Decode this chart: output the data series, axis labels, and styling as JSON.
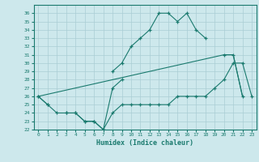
{
  "xlabel": "Humidex (Indice chaleur)",
  "x_values": [
    0,
    1,
    2,
    3,
    4,
    5,
    6,
    7,
    8,
    9,
    10,
    11,
    12,
    13,
    14,
    15,
    16,
    17,
    18,
    19,
    20,
    21,
    22,
    23
  ],
  "line_upper": [
    26,
    25,
    null,
    null,
    null,
    null,
    null,
    null,
    29,
    30,
    32,
    33,
    34,
    36,
    36,
    35,
    36,
    34,
    33,
    null,
    null,
    null,
    null,
    null
  ],
  "line_mid": [
    26,
    null,
    null,
    null,
    null,
    null,
    null,
    null,
    null,
    null,
    null,
    null,
    null,
    null,
    null,
    null,
    null,
    null,
    null,
    null,
    31,
    31,
    26,
    null
  ],
  "line_lower": [
    26,
    25,
    24,
    24,
    24,
    23,
    23,
    22,
    24,
    25,
    25,
    25,
    25,
    25,
    25,
    26,
    26,
    26,
    26,
    27,
    28,
    30,
    30,
    26
  ],
  "line_short": [
    null,
    null,
    null,
    24,
    24,
    23,
    23,
    22,
    27,
    28,
    null,
    null,
    null,
    null,
    null,
    null,
    null,
    null,
    null,
    null,
    null,
    null,
    null,
    null
  ],
  "ylim": [
    22,
    37
  ],
  "xlim": [
    -0.5,
    23.5
  ],
  "yticks": [
    22,
    23,
    24,
    25,
    26,
    27,
    28,
    29,
    30,
    31,
    32,
    33,
    34,
    35,
    36
  ],
  "xticks": [
    0,
    1,
    2,
    3,
    4,
    5,
    6,
    7,
    8,
    9,
    10,
    11,
    12,
    13,
    14,
    15,
    16,
    17,
    18,
    19,
    20,
    21,
    22,
    23
  ],
  "line_color": "#1a7a6e",
  "bg_color": "#cde8ec",
  "grid_color": "#aacdd4"
}
